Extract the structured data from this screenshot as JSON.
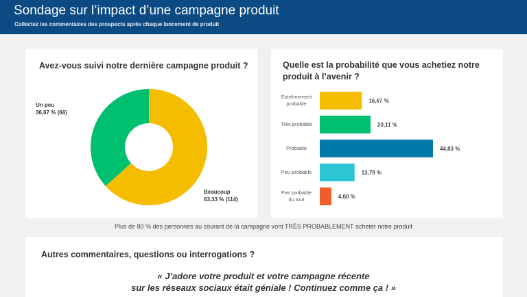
{
  "header": {
    "title": "Sondage sur l’impact d’une campagne produit",
    "subtitle": "Collectez les commentaires des prospects après chaque lancement de produit",
    "background": "#0b4a83"
  },
  "footnote": "Plus de 80 % des personnes au courant de la campagne vont TRÈS PROBABLEMENT acheter notre produit",
  "comments": {
    "question": "Autres commentaires, questions ou interrogations ?",
    "quote_line1": "« J’adore votre produit et votre campagne récente",
    "quote_line2": "sur les réseaux sociaux était géniale ! Continuez comme ça ! »"
  },
  "chart_data": [
    {
      "type": "pie",
      "title": "Avez-vous suivi notre dernière campagne produit ?",
      "categories": [
        "Beaucoup",
        "Un peu"
      ],
      "values": [
        63.33,
        36.67
      ],
      "counts": [
        114,
        66
      ],
      "value_labels": [
        "63,33 % (114)",
        "36,67 % (66)"
      ],
      "colors": [
        "#f5bd00",
        "#00bf6f"
      ],
      "donut": true
    },
    {
      "type": "bar",
      "orientation": "horizontal",
      "title": "Quelle est la probabilité que vous achetiez notre produit à l’avenir ?",
      "categories": [
        "Extrêmement probable",
        "Très probable",
        "Probable",
        "Peu probable",
        "Pas probable du tout"
      ],
      "category_lines": [
        [
          "Extrêmement",
          "probable"
        ],
        [
          "Très probable"
        ],
        [
          "Probable"
        ],
        [
          "Peu probable"
        ],
        [
          "Pas probable",
          "du tout"
        ]
      ],
      "values": [
        16.67,
        20.11,
        44.83,
        13.79,
        4.6
      ],
      "value_labels": [
        "16,67 %",
        "20,11 %",
        "44,83 %",
        "13,79 %",
        "4,60 %"
      ],
      "colors": [
        "#f5bd00",
        "#00bf6f",
        "#007aa8",
        "#2bc5d4",
        "#ef5d28"
      ]
    }
  ]
}
